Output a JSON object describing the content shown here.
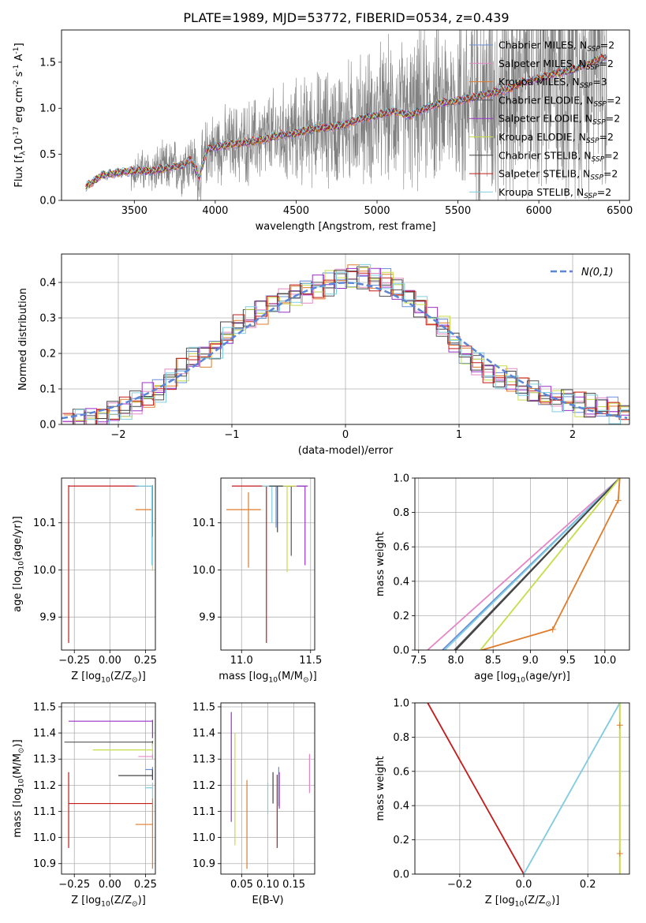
{
  "figure_title": "PLATE=1989, MJD=53772, FIBERID=0534, z=0.439",
  "models": [
    {
      "key": "chabrier_miles",
      "imf": "Chabrier",
      "lib": "MILES",
      "nssp": "2",
      "color": "#6a8fd8"
    },
    {
      "key": "salpeter_miles",
      "imf": "Salpeter",
      "lib": "MILES",
      "nssp": "2",
      "color": "#e487c6"
    },
    {
      "key": "kroupa_miles",
      "imf": "Kroupa",
      "lib": "MILES",
      "nssp": "3",
      "color": "#e07b2a"
    },
    {
      "key": "chabrier_elodie",
      "imf": "Chabrier",
      "lib": "ELODIE",
      "nssp": "2",
      "color": "#555555"
    },
    {
      "key": "salpeter_elodie",
      "imf": "Salpeter",
      "lib": "ELODIE",
      "nssp": "2",
      "color": "#9b30c8"
    },
    {
      "key": "kroupa_elodie",
      "imf": "Kroupa",
      "lib": "ELODIE",
      "nssp": "2",
      "color": "#c8dc4a"
    },
    {
      "key": "chabrier_stelib",
      "imf": "Chabrier",
      "lib": "STELIB",
      "nssp": "2",
      "color": "#444444"
    },
    {
      "key": "salpeter_stelib",
      "imf": "Salpeter",
      "lib": "STELIB",
      "nssp": "2",
      "color": "#c41a1a"
    },
    {
      "key": "kroupa_stelib",
      "imf": "Kroupa",
      "lib": "STELIB",
      "nssp": "2",
      "color": "#7ecfe0"
    }
  ],
  "chart_data": [
    {
      "id": "spectrum",
      "type": "line",
      "xlabel": "wavelength [Angstrom, rest frame]",
      "ylabel": "Flux [f$_\\lambda$10$^{-17}$ erg cm$^{-2}$ s$^{-1}$ A$^{-1}$]",
      "xlim": [
        3050,
        6560
      ],
      "ylim": [
        0,
        1.85
      ],
      "xticks": [
        3500,
        4000,
        4500,
        5000,
        5500,
        6000,
        6500
      ],
      "yticks": [
        0.0,
        0.5,
        1.0,
        1.5
      ],
      "data_color": "#808080",
      "model_shape": {
        "x": [
          3200,
          3300,
          3400,
          3500,
          3600,
          3700,
          3800,
          3850,
          3900,
          3950,
          4000,
          4100,
          4200,
          4300,
          4400,
          4500,
          4600,
          4700,
          4800,
          4900,
          5000,
          5100,
          5200,
          5300,
          5400,
          5500,
          5600,
          5700,
          5800,
          5900,
          6000,
          6100,
          6200,
          6300,
          6400
        ],
        "y": [
          0.15,
          0.27,
          0.3,
          0.32,
          0.32,
          0.35,
          0.38,
          0.45,
          0.25,
          0.55,
          0.58,
          0.61,
          0.63,
          0.66,
          0.71,
          0.73,
          0.78,
          0.79,
          0.82,
          0.89,
          0.92,
          0.97,
          0.92,
          1.0,
          1.06,
          1.08,
          1.12,
          1.16,
          1.2,
          1.28,
          1.32,
          1.38,
          1.41,
          1.48,
          1.55
        ]
      }
    },
    {
      "id": "residuals",
      "type": "histogram",
      "xlabel": "(data-model)/error",
      "ylabel": "Normed distribution",
      "xlim": [
        -2.5,
        2.5
      ],
      "ylim": [
        0,
        0.48
      ],
      "xticks": [
        -2,
        -1,
        0,
        1,
        2
      ],
      "yticks": [
        0.0,
        0.1,
        0.2,
        0.3,
        0.4
      ],
      "grid": true,
      "legend_label": "N(0,1)",
      "legend_position": "top-right",
      "reference": "normal(0,1)",
      "base_hist": [
        0.01,
        0.01,
        0.015,
        0.02,
        0.03,
        0.04,
        0.06,
        0.08,
        0.1,
        0.12,
        0.15,
        0.18,
        0.2,
        0.22,
        0.25,
        0.28,
        0.3,
        0.32,
        0.34,
        0.35,
        0.37,
        0.38,
        0.39,
        0.4,
        0.41,
        0.42,
        0.42,
        0.41,
        0.4,
        0.38,
        0.36,
        0.34,
        0.3,
        0.27,
        0.23,
        0.2,
        0.17,
        0.15,
        0.13,
        0.12,
        0.1,
        0.09,
        0.08,
        0.07,
        0.07,
        0.06,
        0.05,
        0.05,
        0.04,
        0.04
      ]
    },
    {
      "id": "age_vs_z",
      "type": "errorbar",
      "xlabel": "Z [log$_{10}$(Z/Z$_\\odot$)]",
      "ylabel": "age  [log$_{10}$(age/yr)]",
      "xlim": [
        -0.34,
        0.32
      ],
      "ylim": [
        9.83,
        10.195
      ],
      "xticks": [
        -0.25,
        0.0,
        0.25
      ],
      "yticks": [
        9.9,
        10.0,
        10.1
      ],
      "grid": true
    },
    {
      "id": "age_vs_mass",
      "type": "errorbar",
      "xlabel": "mass [log$_{10}$(M/M$_\\odot$)]",
      "xlim": [
        10.85,
        11.53
      ],
      "ylim": [
        9.83,
        10.195
      ],
      "xticks": [
        11.0,
        11.5
      ],
      "yticks": [
        9.9,
        10.0,
        10.1
      ],
      "grid": true
    },
    {
      "id": "cumulative_age",
      "type": "line",
      "xlabel": "age  [log$_{10}$(age/yr)]",
      "ylabel": "mass weight",
      "xlim": [
        7.45,
        10.33
      ],
      "ylim": [
        0,
        1
      ],
      "xticks": [
        7.5,
        8.0,
        8.5,
        9.0,
        9.5,
        10.0
      ],
      "yticks": [
        0.0,
        0.2,
        0.4,
        0.6,
        0.8,
        1.0
      ],
      "grid": true
    },
    {
      "id": "mass_vs_z",
      "type": "errorbar",
      "xlabel": "Z [log$_{10}$(Z/Z$_\\odot$)]",
      "ylabel": "mass [log$_{10}$(M/M$_\\odot$)]",
      "xlim": [
        -0.34,
        0.32
      ],
      "ylim": [
        10.86,
        11.515
      ],
      "xticks": [
        -0.25,
        0.0,
        0.25
      ],
      "yticks": [
        10.9,
        11.0,
        11.1,
        11.2,
        11.3,
        11.4,
        11.5
      ],
      "grid": true
    },
    {
      "id": "mass_vs_ebv",
      "type": "errorbar",
      "xlabel": "E(B-V)",
      "xlim": [
        0.01,
        0.19
      ],
      "ylim": [
        10.86,
        11.515
      ],
      "xticks": [
        0.05,
        0.1,
        0.15
      ],
      "yticks": [
        10.9,
        11.0,
        11.1,
        11.2,
        11.3,
        11.4,
        11.5
      ],
      "grid": true
    },
    {
      "id": "cumulative_z",
      "type": "line",
      "xlabel": "Z [log$_{10}$(Z/Z$_\\odot$)]",
      "ylabel": "mass weight",
      "xlim": [
        -0.34,
        0.33
      ],
      "ylim": [
        0,
        1
      ],
      "xticks": [
        -0.2,
        0.0,
        0.2
      ],
      "yticks": [
        0.0,
        0.2,
        0.4,
        0.6,
        0.8,
        1.0
      ],
      "grid": true
    }
  ]
}
